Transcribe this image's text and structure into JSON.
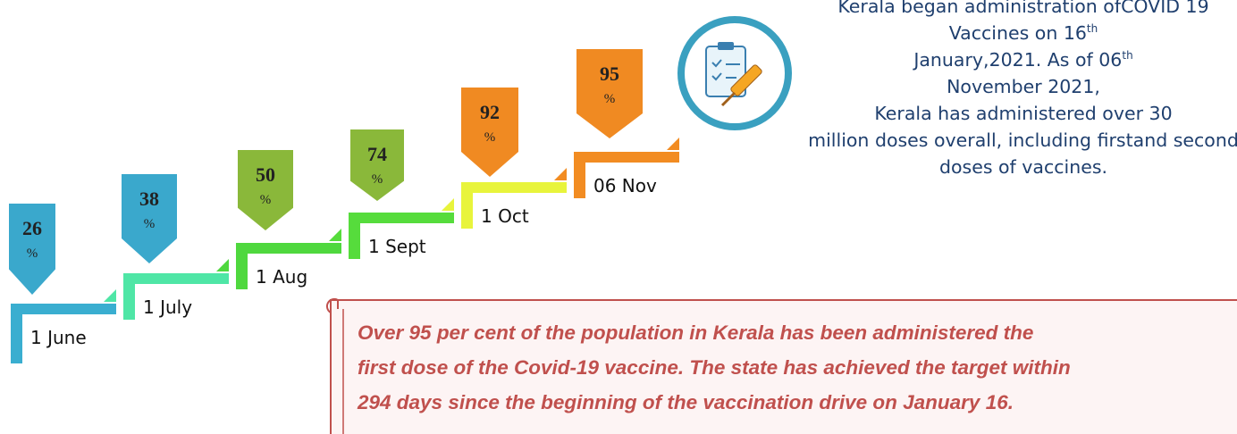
{
  "steps": [
    {
      "date": "1 June",
      "value": 26,
      "percent": "%"
    },
    {
      "date": "1 July",
      "value": 38,
      "percent": "%"
    },
    {
      "date": "1 Aug",
      "value": 50,
      "percent": "%"
    },
    {
      "date": "1 Sept",
      "value": 74,
      "percent": "%"
    },
    {
      "date": "1 Oct",
      "value": 92,
      "percent": "%"
    },
    {
      "date": "06 Nov",
      "value": 95,
      "percent": "%"
    }
  ],
  "description": [
    "Kerala began administration of",
    "COVID 19 Vaccines on 16",
    "th",
    " January,",
    "2021.  As of 06",
    "th",
    " November 2021,",
    "Kerala has administered over 30",
    "million doses overall, including first",
    "and second doses of vaccines."
  ],
  "callout": [
    "Over 95 per cent of the population in Kerala has been administered the",
    "first dose of the Covid-19 vaccine. The state has achieved the target within",
    "294 days since the beginning of the vaccination drive on January 16."
  ]
}
